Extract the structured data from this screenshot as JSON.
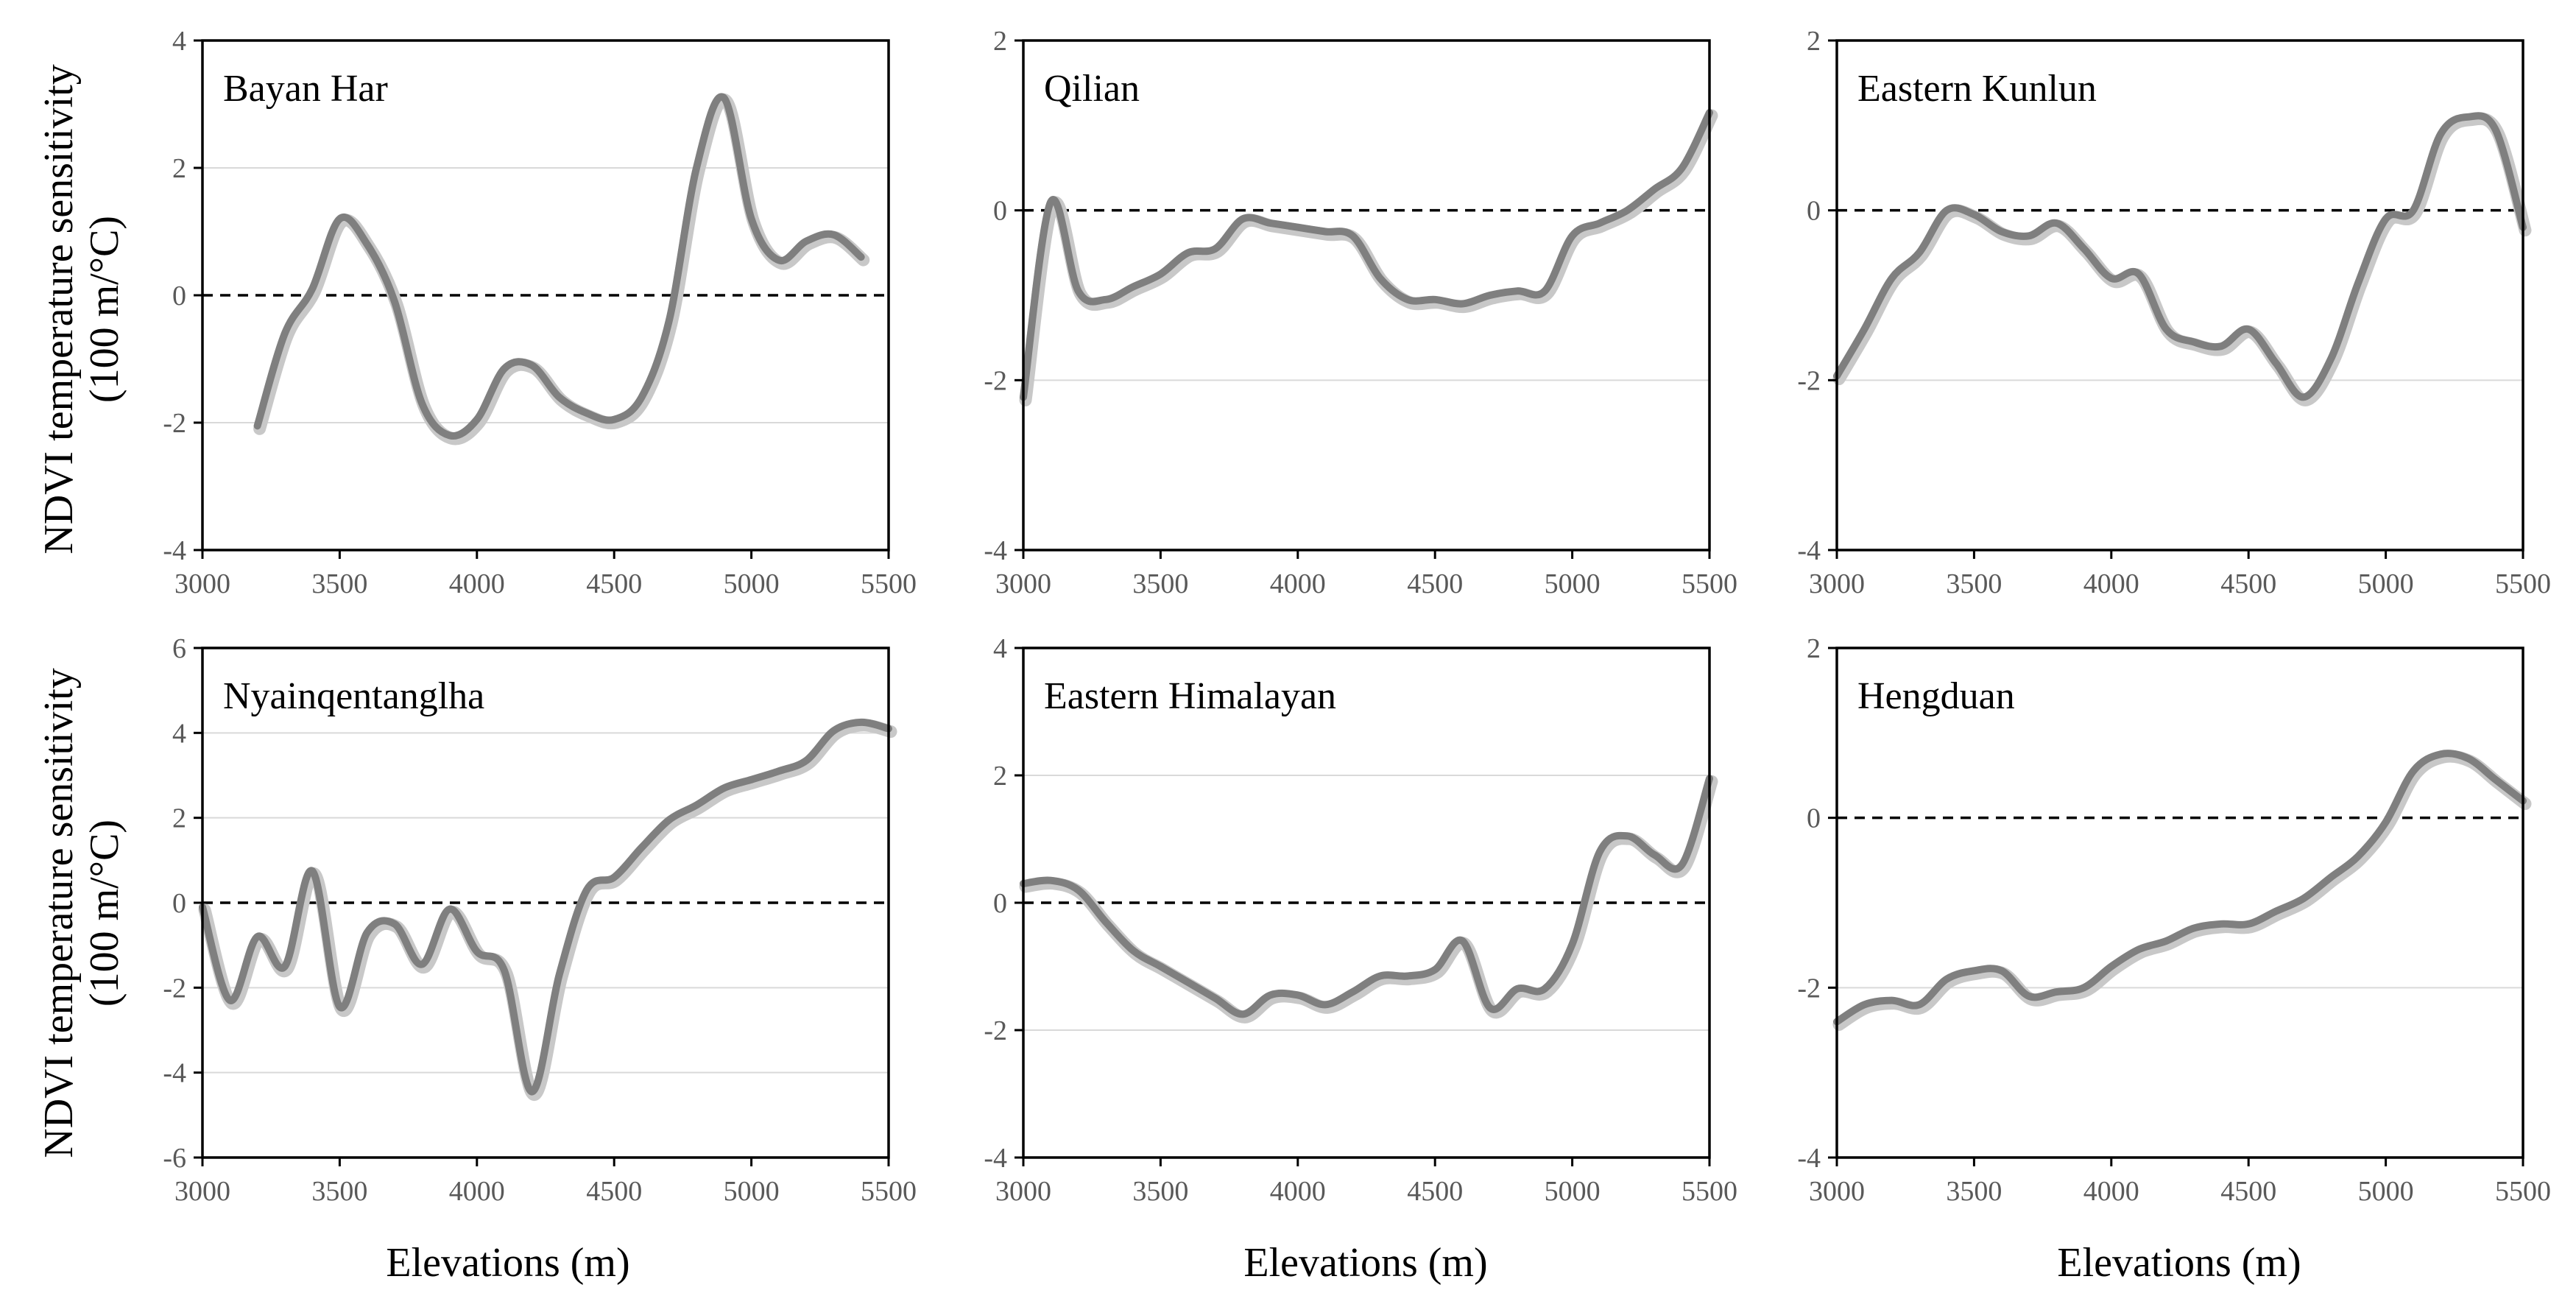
{
  "figure": {
    "ylabel_line1": "NDVI temperature sensitivity",
    "ylabel_line2": "(100 m/°C)",
    "xlabel": "Elevations (m)"
  },
  "chart_data": [
    {
      "type": "line",
      "title": "Bayan Har",
      "xlabel": "Elevations (m)",
      "ylabel": "NDVI temperature sensitivity (100 m/°C)",
      "xlim": [
        3000,
        5500
      ],
      "ylim": [
        -4,
        4
      ],
      "xticks": [
        3000,
        3500,
        4000,
        4500,
        5000,
        5500
      ],
      "yticks": [
        -4,
        -2,
        0,
        2,
        4
      ],
      "gridlines": [
        -2,
        2
      ],
      "reference_line": 0,
      "series": [
        {
          "name": "Bayan Har",
          "x": [
            3200,
            3300,
            3400,
            3500,
            3600,
            3700,
            3800,
            3900,
            4000,
            4100,
            4200,
            4300,
            4400,
            4500,
            4600,
            4700,
            4800,
            4900,
            5000,
            5100,
            5200,
            5300,
            5400
          ],
          "y": [
            -2.05,
            -0.6,
            0.1,
            1.2,
            0.8,
            -0.1,
            -1.7,
            -2.2,
            -1.95,
            -1.15,
            -1.1,
            -1.6,
            -1.85,
            -1.95,
            -1.6,
            -0.4,
            2.0,
            3.1,
            1.2,
            0.55,
            0.85,
            0.95,
            0.6
          ]
        }
      ]
    },
    {
      "type": "line",
      "title": "Qilian",
      "xlabel": "Elevations (m)",
      "ylabel": "NDVI temperature sensitivity (100 m/°C)",
      "xlim": [
        3000,
        5500
      ],
      "ylim": [
        -4,
        2
      ],
      "xticks": [
        3000,
        3500,
        4000,
        4500,
        5000,
        5500
      ],
      "yticks": [
        -4,
        -2,
        0,
        2
      ],
      "gridlines": [
        -2
      ],
      "reference_line": 0,
      "series": [
        {
          "name": "Qilian",
          "x": [
            3000,
            3100,
            3200,
            3300,
            3400,
            3500,
            3600,
            3700,
            3800,
            3900,
            4000,
            4100,
            4200,
            4300,
            4400,
            4500,
            4600,
            4700,
            4800,
            4900,
            5000,
            5100,
            5200,
            5300,
            5400,
            5500
          ],
          "y": [
            -2.2,
            0.1,
            -0.95,
            -1.05,
            -0.9,
            -0.75,
            -0.5,
            -0.45,
            -0.1,
            -0.15,
            -0.2,
            -0.25,
            -0.3,
            -0.8,
            -1.05,
            -1.05,
            -1.1,
            -1.0,
            -0.95,
            -0.95,
            -0.3,
            -0.15,
            0.0,
            0.25,
            0.5,
            1.15
          ]
        }
      ]
    },
    {
      "type": "line",
      "title": "Eastern Kunlun",
      "xlabel": "Elevations (m)",
      "ylabel": "NDVI temperature sensitivity (100 m/°C)",
      "xlim": [
        3000,
        5500
      ],
      "ylim": [
        -4,
        2
      ],
      "xticks": [
        3000,
        3500,
        4000,
        4500,
        5000,
        5500
      ],
      "yticks": [
        -4,
        -2,
        0,
        2
      ],
      "gridlines": [
        -2
      ],
      "reference_line": 0,
      "series": [
        {
          "name": "Eastern Kunlun",
          "x": [
            3000,
            3100,
            3200,
            3300,
            3400,
            3500,
            3600,
            3700,
            3800,
            3900,
            4000,
            4100,
            4200,
            4300,
            4400,
            4500,
            4600,
            4700,
            4800,
            4900,
            5000,
            5100,
            5200,
            5300,
            5400,
            5500
          ],
          "y": [
            -1.95,
            -1.4,
            -0.8,
            -0.5,
            0.0,
            -0.05,
            -0.25,
            -0.3,
            -0.15,
            -0.45,
            -0.8,
            -0.75,
            -1.4,
            -1.55,
            -1.6,
            -1.4,
            -1.8,
            -2.2,
            -1.75,
            -0.85,
            -0.1,
            0.0,
            0.9,
            1.1,
            0.95,
            -0.2
          ]
        }
      ]
    },
    {
      "type": "line",
      "title": "Nyainqentanglha",
      "xlabel": "Elevations (m)",
      "ylabel": "NDVI temperature sensitivity (100 m/°C)",
      "xlim": [
        3000,
        5500
      ],
      "ylim": [
        -6,
        6
      ],
      "xticks": [
        3000,
        3500,
        4000,
        4500,
        5000,
        5500
      ],
      "yticks": [
        -6,
        -4,
        -2,
        0,
        2,
        4,
        6
      ],
      "gridlines": [
        -4,
        -2,
        2,
        4
      ],
      "reference_line": 0,
      "series": [
        {
          "name": "Nyainqentanglha",
          "x": [
            3000,
            3100,
            3200,
            3300,
            3400,
            3500,
            3600,
            3700,
            3800,
            3900,
            4000,
            4100,
            4200,
            4300,
            4400,
            4500,
            4600,
            4700,
            4800,
            4900,
            5000,
            5100,
            5200,
            5300,
            5400,
            5500
          ],
          "y": [
            -0.1,
            -2.3,
            -0.8,
            -1.5,
            0.75,
            -2.45,
            -0.7,
            -0.5,
            -1.45,
            -0.15,
            -1.15,
            -1.6,
            -4.45,
            -1.7,
            0.3,
            0.6,
            1.3,
            1.95,
            2.3,
            2.7,
            2.9,
            3.1,
            3.35,
            4.05,
            4.25,
            4.1
          ]
        }
      ]
    },
    {
      "type": "line",
      "title": "Eastern Himalayan",
      "xlabel": "Elevations (m)",
      "ylabel": "NDVI temperature sensitivity (100 m/°C)",
      "xlim": [
        3000,
        5500
      ],
      "ylim": [
        -4,
        4
      ],
      "xticks": [
        3000,
        3500,
        4000,
        4500,
        5000,
        5500
      ],
      "yticks": [
        -4,
        -2,
        0,
        2,
        4
      ],
      "gridlines": [
        -2,
        2
      ],
      "reference_line": 0,
      "series": [
        {
          "name": "Eastern Himalayan",
          "x": [
            3000,
            3100,
            3200,
            3300,
            3400,
            3500,
            3600,
            3700,
            3800,
            3900,
            4000,
            4100,
            4200,
            4300,
            4400,
            4500,
            4600,
            4700,
            4800,
            4900,
            5000,
            5100,
            5200,
            5300,
            5400,
            5500
          ],
          "y": [
            0.3,
            0.35,
            0.2,
            -0.3,
            -0.75,
            -1.0,
            -1.25,
            -1.5,
            -1.75,
            -1.45,
            -1.45,
            -1.6,
            -1.4,
            -1.15,
            -1.15,
            -1.05,
            -0.6,
            -1.65,
            -1.35,
            -1.35,
            -0.65,
            0.8,
            1.05,
            0.75,
            0.6,
            1.95
          ]
        }
      ]
    },
    {
      "type": "line",
      "title": "Hengduan",
      "xlabel": "Elevations (m)",
      "ylabel": "NDVI temperature sensitivity (100 m/°C)",
      "xlim": [
        3000,
        5500
      ],
      "ylim": [
        -4,
        2
      ],
      "xticks": [
        3000,
        3500,
        4000,
        4500,
        5000,
        5500
      ],
      "yticks": [
        -4,
        -2,
        0,
        2
      ],
      "gridlines": [
        -2
      ],
      "reference_line": 0,
      "series": [
        {
          "name": "Hengduan",
          "x": [
            3000,
            3100,
            3200,
            3300,
            3400,
            3500,
            3600,
            3700,
            3800,
            3900,
            4000,
            4100,
            4200,
            4300,
            4400,
            4500,
            4600,
            4700,
            4800,
            4900,
            5000,
            5100,
            5200,
            5300,
            5400,
            5500
          ],
          "y": [
            -2.4,
            -2.2,
            -2.15,
            -2.2,
            -1.9,
            -1.8,
            -1.8,
            -2.1,
            -2.05,
            -2.0,
            -1.75,
            -1.55,
            -1.45,
            -1.3,
            -1.25,
            -1.25,
            -1.1,
            -0.95,
            -0.7,
            -0.45,
            -0.05,
            0.55,
            0.75,
            0.7,
            0.45,
            0.2
          ]
        }
      ]
    }
  ]
}
